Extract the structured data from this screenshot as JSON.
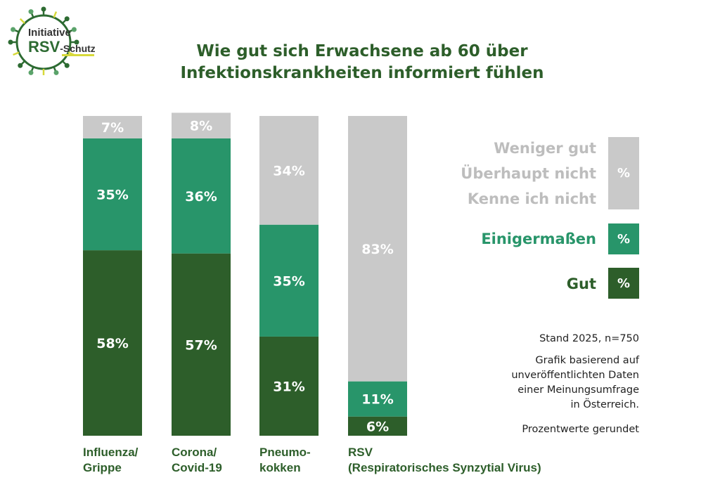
{
  "logo": {
    "line1": "Initiative",
    "line2_bold": "RSV",
    "line2_rest": "-Schutz"
  },
  "colors": {
    "gut": "#2d5e2a",
    "einigermassen": "#28956a",
    "weniger": "#c9c9c9",
    "title": "#2d5e2a"
  },
  "chart_data": {
    "type": "bar",
    "stacked": true,
    "title": "Wie gut sich Erwachsene ab 60 über Infektionskrankheiten informiert fühlen",
    "title_lines": [
      "Wie gut sich Erwachsene ab 60 über",
      "Infektionskrankheiten informiert fühlen"
    ],
    "categories": [
      "Influenza/ Grippe",
      "Corona/ Covid-19",
      "Pneumo-kokken",
      "RSV (Respiratorisches Synzytial Virus)"
    ],
    "category_lines": [
      [
        "Influenza/",
        "Grippe"
      ],
      [
        "Corona/",
        "Covid-19"
      ],
      [
        "Pneumo-",
        "kokken"
      ],
      [
        "RSV",
        "(Respiratorisches Synzytial Virus)"
      ]
    ],
    "series": [
      {
        "name": "Gut",
        "color": "#2d5e2a",
        "values": [
          58,
          57,
          31,
          6
        ]
      },
      {
        "name": "Einigermaßen",
        "color": "#28956a",
        "values": [
          35,
          36,
          35,
          11
        ]
      },
      {
        "name": "Weniger gut / Überhaupt nicht / Kenne ich nicht",
        "color": "#c9c9c9",
        "values": [
          7,
          8,
          34,
          83
        ]
      }
    ],
    "unit": "%",
    "ylim": [
      0,
      100
    ],
    "xlabel": "",
    "ylabel": "",
    "grid": false,
    "legend": {
      "placement": "right",
      "items": [
        {
          "lines": [
            "Weniger gut",
            "Überhaupt nicht",
            "Kenne ich nicht"
          ],
          "symbol": "%",
          "color": "#c9c9c9",
          "text_color": "#bdbdbd"
        },
        {
          "lines": [
            "Einigermaßen"
          ],
          "symbol": "%",
          "color": "#28956a",
          "text_color": "#28956a"
        },
        {
          "lines": [
            "Gut"
          ],
          "symbol": "%",
          "color": "#2d5e2a",
          "text_color": "#2d5e2a"
        }
      ]
    },
    "annotations": [
      "Stand 2025, n=750",
      "Grafik basierend auf unveröffentlichten Daten einer Meinungsumfrage in Österreich.",
      "Prozentwerte gerundet"
    ]
  },
  "notes": {
    "stand": "Stand 2025, n=750",
    "source_lines": [
      "Grafik basierend auf",
      "unveröffentlichten Daten",
      "einer Meinungsumfrage",
      "in Österreich."
    ],
    "rounded": "Prozentwerte gerundet"
  }
}
